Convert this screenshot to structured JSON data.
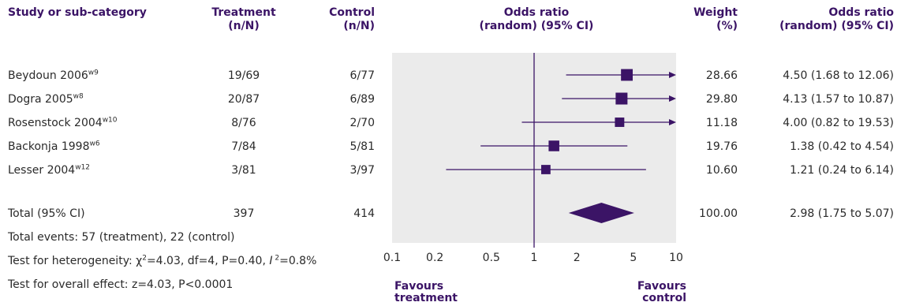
{
  "headers": {
    "study": "Study or sub-category",
    "treatment": [
      "Treatment",
      "(n/N)"
    ],
    "control": [
      "Control",
      "(n/N)"
    ],
    "odds_ratio_plot": [
      "Odds ratio",
      "(random) (95% CI)"
    ],
    "weight": [
      "Weight",
      "(%)"
    ],
    "odds_ratio_value": [
      "Odds ratio",
      "(random) (95% CI)"
    ]
  },
  "rows": [
    {
      "name": "Beydoun 2006",
      "sup": "w9",
      "treatment": "19/69",
      "control": "6/77",
      "weight": "28.66",
      "or_text": "4.50 (1.68 to 12.06)"
    },
    {
      "name": "Dogra 2005",
      "sup": "w8",
      "treatment": "20/87",
      "control": "6/89",
      "weight": "29.80",
      "or_text": "4.13 (1.57 to 10.87)"
    },
    {
      "name": "Rosenstock 2004",
      "sup": "w10",
      "treatment": "8/76",
      "control": "2/70",
      "weight": "11.18",
      "or_text": "4.00 (0.82 to 19.53)"
    },
    {
      "name": "Backonja 1998",
      "sup": "w6",
      "treatment": "7/84",
      "control": "5/81",
      "weight": "19.76",
      "or_text": "1.38 (0.42 to 4.54)"
    },
    {
      "name": "Lesser 2004",
      "sup": "w12",
      "treatment": "3/81",
      "control": "3/97",
      "weight": "10.60",
      "or_text": "1.21 (0.24 to 6.14)"
    }
  ],
  "total": {
    "name": "Total (95% CI)",
    "treatment": "397",
    "control": "414",
    "weight": "100.00",
    "or_text": "2.98 (1.75 to 5.07)"
  },
  "footer": {
    "events": "Total events: 57 (treatment), 22 (control)",
    "heterogeneity_prefix": "Test for heterogeneity: ",
    "heterogeneity_chi": "χ",
    "heterogeneity_chi_sup": "2",
    "heterogeneity_mid": "=4.03, df=4, P=0.40, ",
    "heterogeneity_i": "I",
    "heterogeneity_i_sup": " 2",
    "heterogeneity_end": "=0.8%",
    "overall": "Test for overall effect: z=4.03, P<0.0001"
  },
  "axis": {
    "favours_left": [
      "Favours",
      "treatment"
    ],
    "favours_right": [
      "Favours",
      "control"
    ]
  },
  "colors": {
    "accent": "#3b1466",
    "panel": "#ebebeb",
    "text": "#2a2a2a"
  },
  "chart_data": {
    "type": "forest",
    "x_scale": "log",
    "xlim": [
      0.1,
      10
    ],
    "reference_line": 1,
    "ticks": [
      0.1,
      0.2,
      0.5,
      1,
      2,
      5,
      10
    ],
    "tick_labels": [
      "0.1",
      "0.2",
      "0.5",
      "1",
      "2",
      "5",
      "10"
    ],
    "studies": [
      {
        "name": "Beydoun 2006",
        "or": 4.5,
        "lo": 1.68,
        "hi": 12.06,
        "weight": 28.66
      },
      {
        "name": "Dogra 2005",
        "or": 4.13,
        "lo": 1.57,
        "hi": 10.87,
        "weight": 29.8
      },
      {
        "name": "Rosenstock 2004",
        "or": 4.0,
        "lo": 0.82,
        "hi": 19.53,
        "weight": 11.18
      },
      {
        "name": "Backonja 1998",
        "or": 1.38,
        "lo": 0.42,
        "hi": 4.54,
        "weight": 19.76
      },
      {
        "name": "Lesser 2004",
        "or": 1.21,
        "lo": 0.24,
        "hi": 6.14,
        "weight": 10.6
      }
    ],
    "pooled": {
      "or": 2.98,
      "lo": 1.75,
      "hi": 5.07
    }
  }
}
